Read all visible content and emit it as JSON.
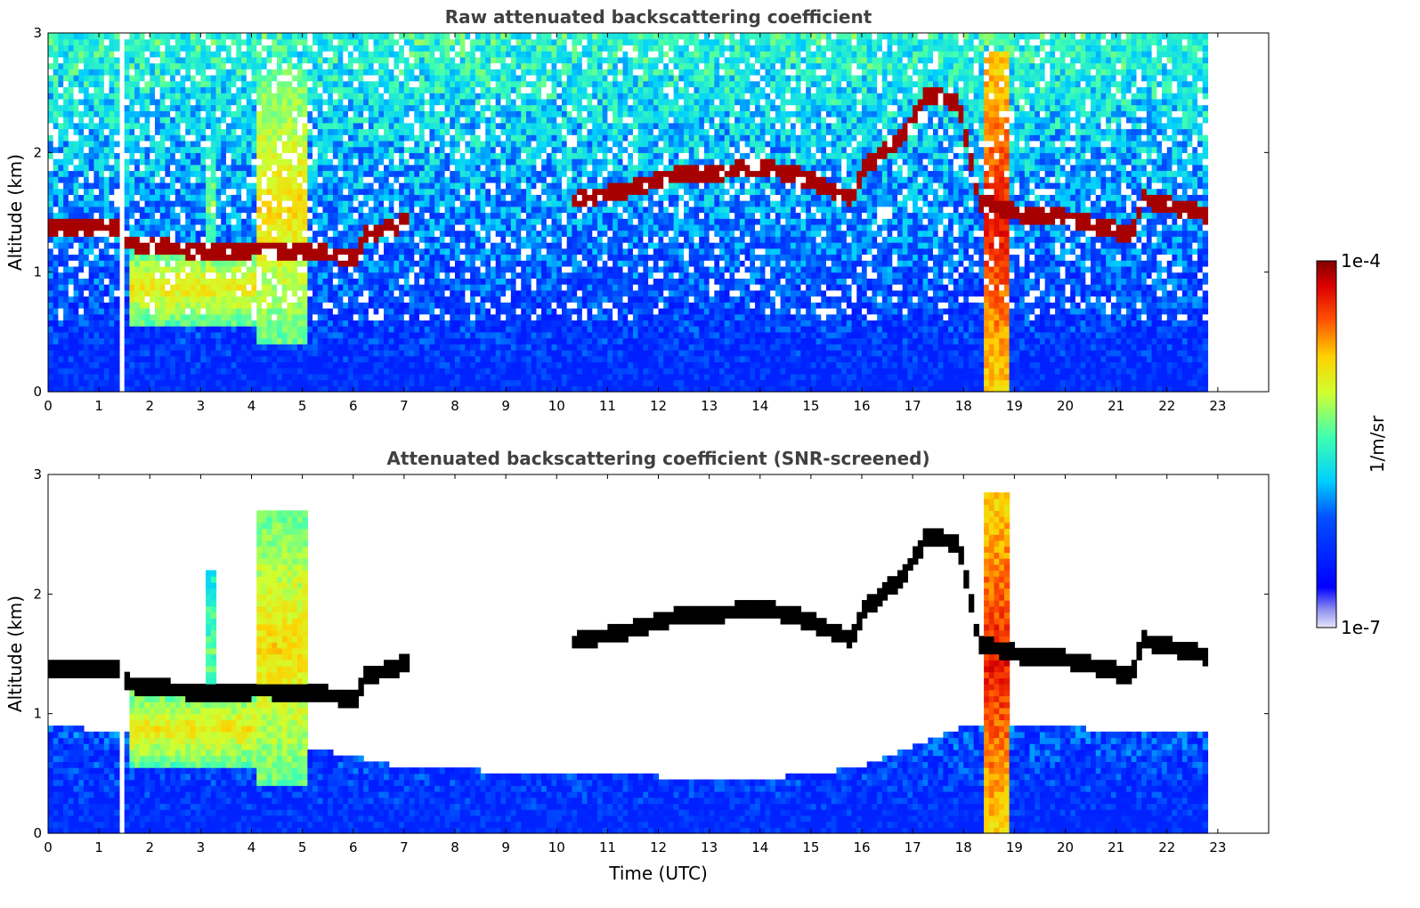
{
  "chart_data": [
    {
      "type": "heatmap",
      "title": "Raw attenuated backscattering coefficient",
      "xlabel": "",
      "ylabel": "Altitude (km)",
      "xlim": [
        0,
        24
      ],
      "ylim": [
        0,
        3
      ],
      "x_ticks": [
        "0",
        "1",
        "2",
        "3",
        "4",
        "5",
        "6",
        "7",
        "8",
        "9",
        "10",
        "11",
        "12",
        "13",
        "14",
        "15",
        "16",
        "17",
        "18",
        "19",
        "20",
        "21",
        "22",
        "23"
      ],
      "y_ticks": [
        "0",
        "1",
        "2",
        "3"
      ],
      "data_extent_hours": [
        0,
        22.8
      ],
      "gap_hours": [
        1.43,
        1.55
      ],
      "screened": false,
      "cloud_base": [
        {
          "t": 0.0,
          "z": 1.38
        },
        {
          "t": 0.5,
          "z": 1.38
        },
        {
          "t": 1.4,
          "z": 1.37
        },
        {
          "t": 1.6,
          "z": 1.25
        },
        {
          "t": 2.5,
          "z": 1.2
        },
        {
          "t": 3.5,
          "z": 1.18
        },
        {
          "t": 4.2,
          "z": 1.2
        },
        {
          "t": 5.1,
          "z": 1.18
        },
        {
          "t": 5.6,
          "z": 1.15
        },
        {
          "t": 6.1,
          "z": 1.12
        },
        {
          "t": 6.2,
          "z": 1.32
        },
        {
          "t": 6.8,
          "z": 1.38
        },
        {
          "t": 7.1,
          "z": 1.45
        },
        {
          "t": 10.3,
          "z": 1.6
        },
        {
          "t": 11.5,
          "z": 1.7
        },
        {
          "t": 12.2,
          "z": 1.8
        },
        {
          "t": 13.0,
          "z": 1.83
        },
        {
          "t": 14.0,
          "z": 1.88
        },
        {
          "t": 14.8,
          "z": 1.8
        },
        {
          "t": 15.8,
          "z": 1.62
        },
        {
          "t": 16.0,
          "z": 1.85
        },
        {
          "t": 16.8,
          "z": 2.15
        },
        {
          "t": 17.3,
          "z": 2.5
        },
        {
          "t": 17.9,
          "z": 2.42
        },
        {
          "t": 18.3,
          "z": 1.6
        },
        {
          "t": 19.0,
          "z": 1.5
        },
        {
          "t": 20.0,
          "z": 1.46
        },
        {
          "t": 21.0,
          "z": 1.35
        },
        {
          "t": 21.3,
          "z": 1.3
        },
        {
          "t": 21.5,
          "z": 1.62
        },
        {
          "t": 22.8,
          "z": 1.48
        }
      ],
      "clouds": [
        {
          "t0": 4.1,
          "t1": 5.1,
          "z0": 0.4,
          "ztop": 2.7,
          "peak": 0.72
        },
        {
          "t0": 3.1,
          "t1": 3.35,
          "z0": 0.9,
          "ztop": 2.2,
          "peak": 0.6
        },
        {
          "t0": 1.6,
          "t1": 4.1,
          "z0": 0.55,
          "ztop": 1.2,
          "peak": 0.7
        },
        {
          "t0": 18.4,
          "t1": 18.9,
          "z0": 0.0,
          "ztop": 2.85,
          "peak": 0.9
        }
      ],
      "colorbar": {
        "label": "1/m/sr",
        "min_label": "1e-7",
        "max_label": "1e-4",
        "scale": "log",
        "colormap": "jet"
      }
    },
    {
      "type": "heatmap",
      "title": "Attenuated backscattering coefficient (SNR-screened)",
      "xlabel": "Time (UTC)",
      "ylabel": "Altitude (km)",
      "xlim": [
        0,
        24
      ],
      "ylim": [
        0,
        3
      ],
      "x_ticks": [
        "0",
        "1",
        "2",
        "3",
        "4",
        "5",
        "6",
        "7",
        "8",
        "9",
        "10",
        "11",
        "12",
        "13",
        "14",
        "15",
        "16",
        "17",
        "18",
        "19",
        "20",
        "21",
        "22",
        "23"
      ],
      "y_ticks": [
        "0",
        "1",
        "2",
        "3"
      ],
      "data_extent_hours": [
        0,
        22.8
      ],
      "gap_hours": [
        1.43,
        1.55
      ],
      "screened": true,
      "screening_top_km": [
        {
          "t": 0.0,
          "z": 0.9
        },
        {
          "t": 5.3,
          "z": 0.7
        },
        {
          "t": 7.0,
          "z": 0.55
        },
        {
          "t": 10.0,
          "z": 0.5
        },
        {
          "t": 14.0,
          "z": 0.45
        },
        {
          "t": 16.0,
          "z": 0.55
        },
        {
          "t": 18.0,
          "z": 0.9
        },
        {
          "t": 22.8,
          "z": 0.85
        }
      ]
    }
  ]
}
